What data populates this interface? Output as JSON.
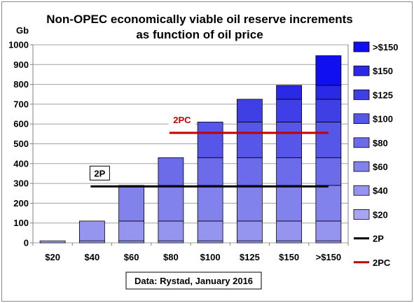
{
  "chart_data": {
    "type": "bar",
    "title": "Non-OPEC economically viable oil reserve  increments",
    "subtitle": "as function of oil price",
    "ylabel": "Gb",
    "xlabel": "",
    "ylim": [
      0,
      1000
    ],
    "yticks": [
      0,
      100,
      200,
      300,
      400,
      500,
      600,
      700,
      800,
      900,
      1000
    ],
    "grid": "horizontal",
    "legend_position": "right",
    "categories": [
      "$20",
      "$40",
      "$60",
      "$80",
      "$100",
      "$125",
      "$150",
      ">$150"
    ],
    "series": [
      {
        "name": "$20",
        "color": "#a6a6f2",
        "values": [
          10,
          10,
          10,
          10,
          10,
          10,
          10,
          10
        ]
      },
      {
        "name": "$40",
        "color": "#9595ef",
        "values": [
          0,
          100,
          100,
          100,
          100,
          100,
          100,
          100
        ]
      },
      {
        "name": "$60",
        "color": "#8282ec",
        "values": [
          0,
          0,
          180,
          180,
          180,
          180,
          180,
          180
        ]
      },
      {
        "name": "$80",
        "color": "#6c6cea",
        "values": [
          0,
          0,
          0,
          140,
          140,
          140,
          140,
          140
        ]
      },
      {
        "name": "$100",
        "color": "#5656e8",
        "values": [
          0,
          0,
          0,
          0,
          180,
          180,
          180,
          180
        ]
      },
      {
        "name": "$125",
        "color": "#3f3fe6",
        "values": [
          0,
          0,
          0,
          0,
          0,
          115,
          115,
          115
        ]
      },
      {
        "name": "$150",
        "color": "#2a2ae6",
        "values": [
          0,
          0,
          0,
          0,
          0,
          0,
          70,
          70
        ]
      },
      {
        "name": ">$150",
        "color": "#0f0ff0",
        "values": [
          0,
          0,
          0,
          0,
          0,
          0,
          0,
          150
        ]
      }
    ],
    "reference_lines": [
      {
        "name": "2P",
        "label": "2P",
        "value": 285,
        "color": "#000000",
        "from_category": "$40",
        "to_category": ">$150"
      },
      {
        "name": "2PC",
        "label": "2PC",
        "value": 555,
        "color": "#c00000",
        "from_category": "$80",
        "to_category": ">$150"
      }
    ],
    "legend_entries": [
      ">$150",
      "$150",
      "$125",
      "$100",
      "$80",
      "$60",
      "$40",
      "$20",
      "2P",
      "2PC"
    ],
    "annotation": "Data: Rystad, January 2016"
  }
}
